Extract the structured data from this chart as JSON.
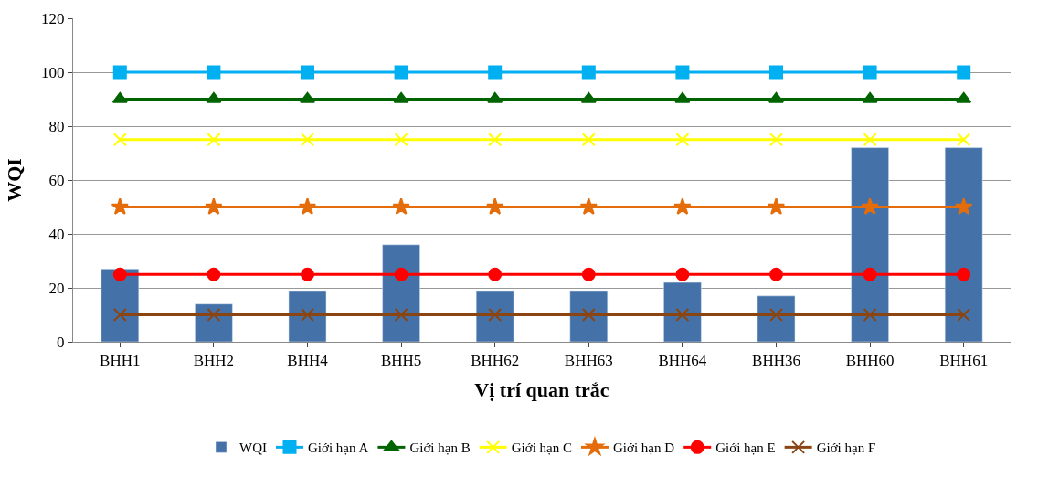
{
  "chart_data": {
    "type": "bar",
    "xlabel": "Vị trí quan trắc",
    "ylabel": "WQI",
    "categories": [
      "BHH1",
      "BHH2",
      "BHH4",
      "BHH5",
      "BHH62",
      "BHH63",
      "BHH64",
      "BHH36",
      "BHH60",
      "BHH61"
    ],
    "series": [
      {
        "name": "WQI",
        "color": "#4472a8",
        "values": [
          27,
          14,
          19,
          36,
          19,
          19,
          22,
          17,
          72,
          72
        ]
      },
      {
        "name": "Giới hạn A",
        "type": "line",
        "marker": "square",
        "color": "#00b0f0",
        "values": [
          100,
          100,
          100,
          100,
          100,
          100,
          100,
          100,
          100,
          100
        ]
      },
      {
        "name": "Giới hạn B",
        "type": "line",
        "marker": "triangle",
        "color": "#006400",
        "values": [
          90,
          90,
          90,
          90,
          90,
          90,
          90,
          90,
          90,
          90
        ]
      },
      {
        "name": "Giới hạn C",
        "type": "line",
        "marker": "cross",
        "color": "#ffff00",
        "values": [
          75,
          75,
          75,
          75,
          75,
          75,
          75,
          75,
          75,
          75
        ]
      },
      {
        "name": "Giới hạn D",
        "type": "line",
        "marker": "star",
        "color": "#e46c0a",
        "values": [
          50,
          50,
          50,
          50,
          50,
          50,
          50,
          50,
          50,
          50
        ]
      },
      {
        "name": "Giới hạn E",
        "type": "line",
        "marker": "circle",
        "color": "#ff0000",
        "values": [
          25,
          25,
          25,
          25,
          25,
          25,
          25,
          25,
          25,
          25
        ]
      },
      {
        "name": "Giới hạn F",
        "type": "line",
        "marker": "cross",
        "color": "#8b4513",
        "values": [
          10,
          10,
          10,
          10,
          10,
          10,
          10,
          10,
          10,
          10
        ]
      }
    ],
    "ylim": [
      0,
      120
    ],
    "yticks": [
      0,
      20,
      40,
      60,
      80,
      100,
      120
    ],
    "grid": "y",
    "legend": "bottom"
  }
}
